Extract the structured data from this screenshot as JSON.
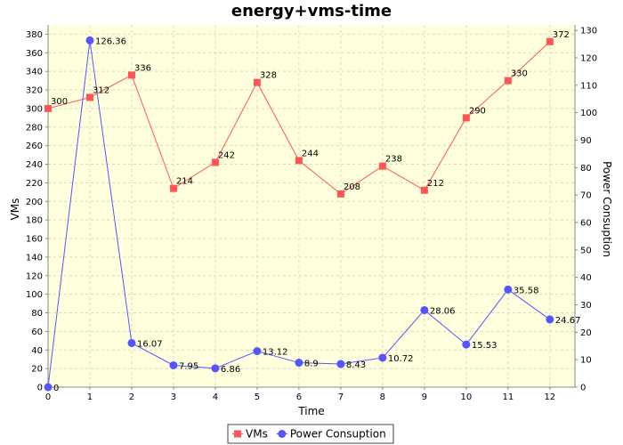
{
  "chart_data": {
    "type": "line",
    "title": "energy+vms-time",
    "xlabel": "Time",
    "ylabel_left": "VMs",
    "ylabel_right": "Power Consuption",
    "x": [
      0,
      1,
      2,
      3,
      4,
      5,
      6,
      7,
      8,
      9,
      10,
      11,
      12
    ],
    "xlim": [
      0,
      12.6
    ],
    "ylim_left": [
      0,
      390
    ],
    "ylim_right": [
      0,
      132
    ],
    "yticks_left": [
      0,
      20,
      40,
      60,
      80,
      100,
      120,
      140,
      160,
      180,
      200,
      220,
      240,
      260,
      280,
      300,
      320,
      340,
      360,
      380
    ],
    "yticks_right": [
      0,
      10,
      20,
      30,
      40,
      50,
      60,
      70,
      80,
      90,
      100,
      110,
      120,
      130
    ],
    "grid": true,
    "legend_position": "bottom",
    "series": [
      {
        "name": "VMs",
        "axis": "left",
        "color": "#ff5555",
        "marker": "square",
        "values": [
          300,
          312,
          336,
          214,
          242,
          328,
          244,
          208,
          238,
          212,
          290,
          330,
          372
        ],
        "labels": [
          "300",
          "312",
          "336",
          "214",
          "242",
          "328",
          "244",
          "208",
          "238",
          "212",
          "290",
          "330",
          "372"
        ]
      },
      {
        "name": "Power Consuption",
        "axis": "right",
        "color": "#5555ff",
        "marker": "circle",
        "values": [
          0,
          126.36,
          16.07,
          7.95,
          6.86,
          13.12,
          8.9,
          8.43,
          10.72,
          28.06,
          15.53,
          35.58,
          24.67
        ],
        "labels": [
          "0",
          "126.36",
          "16.07",
          "7.95",
          "6.86",
          "13.12",
          "8.9",
          "8.43",
          "10.72",
          "28.06",
          "15.53",
          "35.58",
          "24.67"
        ]
      }
    ]
  }
}
